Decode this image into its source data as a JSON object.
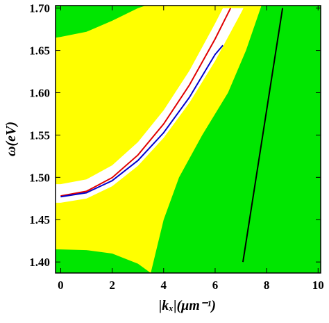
{
  "chart_data": {
    "type": "region",
    "xlabel": "|kₓ|(μm⁻¹)",
    "ylabel": "ω(eV)",
    "xlim": [
      -0.2,
      10.1
    ],
    "ylim": [
      1.387,
      1.703
    ],
    "xticks": [
      0,
      2,
      4,
      6,
      8,
      10
    ],
    "yticks": [
      {
        "value": 1.4,
        "label": "1.40"
      },
      1.45,
      {
        "value": 1.5,
        "label": "1.50"
      },
      1.55,
      {
        "value": 1.6,
        "label": "1.60"
      },
      1.65,
      {
        "value": 1.7,
        "label": "1.70"
      }
    ],
    "background": "#00e600",
    "regions": [
      {
        "color": "#ffff00",
        "x": [
          -0.2,
          1,
          2,
          3,
          3.5,
          4,
          4.6,
          5.5,
          6.5,
          7.2,
          7.8,
          -0.2
        ],
        "y": [
          1.415,
          1.414,
          1.41,
          1.398,
          1.387,
          1.45,
          1.5,
          1.55,
          1.6,
          1.65,
          1.703,
          1.703
        ]
      },
      {
        "color": "#00e600",
        "x": [
          -0.2,
          0,
          1,
          2,
          3,
          3.3,
          -0.2
        ],
        "y": [
          1.665,
          1.666,
          1.672,
          1.685,
          1.7,
          1.703,
          1.703
        ]
      },
      {
        "color": "#ffffff",
        "x": [
          -0.2,
          0,
          1,
          2,
          3,
          4,
          5,
          6,
          6.3,
          7.1,
          7,
          6,
          5,
          4,
          3,
          2,
          1,
          0,
          -0.2
        ],
        "y": [
          1.492,
          1.492,
          1.4976,
          1.5142,
          1.5416,
          1.5792,
          1.6261,
          1.6818,
          1.7,
          1.7,
          1.694,
          1.6375,
          1.5882,
          1.5467,
          1.5136,
          1.4895,
          1.4749,
          1.47,
          1.47
        ]
      }
    ],
    "series": [
      {
        "color": "#e00000",
        "x": [
          0,
          1,
          2,
          3,
          4,
          5,
          6,
          6.6
        ],
        "y": [
          1.478,
          1.4835,
          1.4997,
          1.5264,
          1.5631,
          1.6091,
          1.6635,
          1.7
        ]
      },
      {
        "color": "#0000cc",
        "x": [
          0,
          1,
          2,
          3,
          4,
          5,
          6,
          6.3
        ],
        "y": [
          1.477,
          1.4818,
          1.4961,
          1.5199,
          1.5528,
          1.5946,
          1.6452,
          1.656
        ]
      },
      {
        "color": "#000000",
        "x": [
          7.08,
          8.62
        ],
        "y": [
          1.4,
          1.7
        ]
      }
    ]
  }
}
